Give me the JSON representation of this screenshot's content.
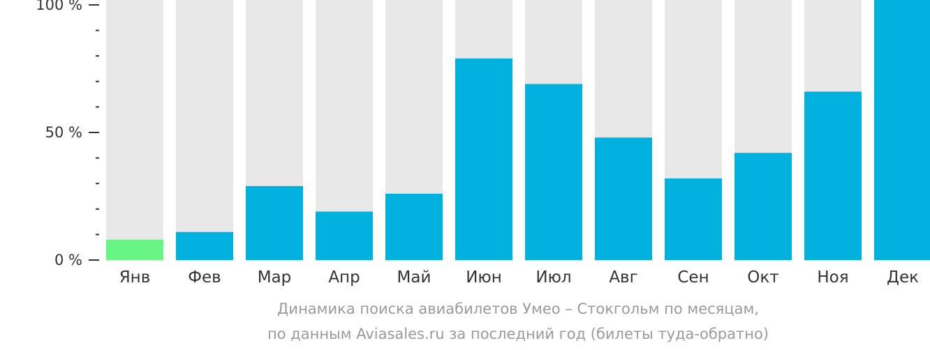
{
  "chart_data": {
    "type": "bar",
    "categories": [
      "Янв",
      "Фев",
      "Мар",
      "Апр",
      "Май",
      "Июн",
      "Июл",
      "Авг",
      "Сен",
      "Окт",
      "Ноя",
      "Дек"
    ],
    "values": [
      8,
      11,
      29,
      19,
      26,
      79,
      69,
      48,
      32,
      42,
      66,
      100
    ],
    "ylim": [
      0,
      100
    ],
    "yticks": [
      {
        "value": 0,
        "label": "0 %"
      },
      {
        "value": 50,
        "label": "50 %"
      },
      {
        "value": 100,
        "label": "100 %"
      }
    ],
    "minor_ticks": [
      10,
      20,
      30,
      40,
      60,
      70,
      80,
      90
    ],
    "colors": {
      "bar": "#00b0dd",
      "highlight": "#69f584",
      "background_bar": "#e8e8e9",
      "axis": "#333333"
    },
    "highlight_index": 0,
    "caption": [
      "Динамика поиска авиабилетов Умео – Стокгольм по месяцам,",
      "по данным Aviasales.ru за последний год (билеты туда-обратно)"
    ]
  }
}
